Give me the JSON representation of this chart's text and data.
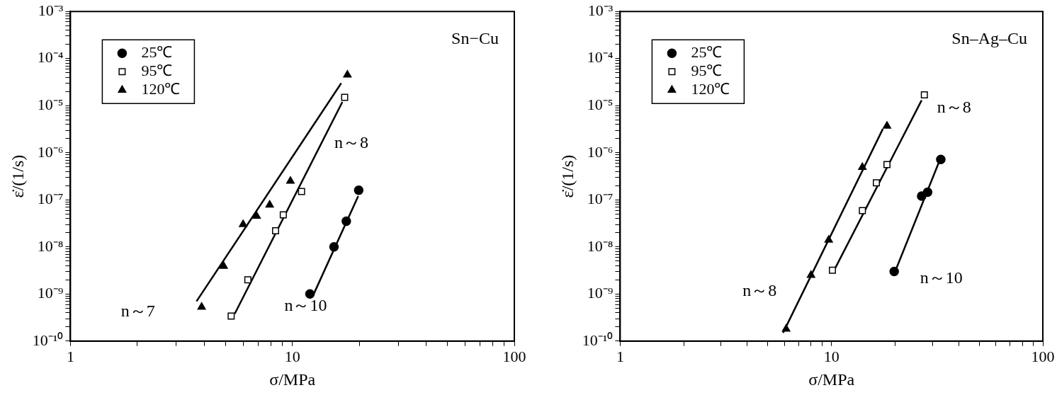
{
  "chart_data": [
    {
      "type": "scatter",
      "xlabel": "σ/MPa",
      "ylabel": "ε̇/(1/s)",
      "log": "xy",
      "grid": false,
      "legend": "top left",
      "xlim": [
        1,
        100
      ],
      "ylim": [
        1e-10,
        0.001
      ],
      "xticks": [
        1,
        {
          "value": 2,
          "label": null
        },
        {
          "value": 3,
          "label": null
        },
        {
          "value": 4,
          "label": null
        },
        {
          "value": 5,
          "label": null
        },
        {
          "value": 6,
          "label": null
        },
        {
          "value": 7,
          "label": null
        },
        {
          "value": 8,
          "label": null
        },
        {
          "value": 9,
          "label": null
        },
        10,
        {
          "value": 20,
          "label": null
        },
        {
          "value": 30,
          "label": null
        },
        {
          "value": 40,
          "label": null
        },
        {
          "value": 50,
          "label": null
        },
        {
          "value": 60,
          "label": null
        },
        {
          "value": 70,
          "label": null
        },
        {
          "value": 80,
          "label": null
        },
        {
          "value": 90,
          "label": null
        },
        100
      ],
      "yticks": [
        {
          "value": 1e-10,
          "label": "10⁻¹⁰"
        },
        {
          "value": 2e-10,
          "label": null
        },
        {
          "value": 3e-10,
          "label": null
        },
        {
          "value": 4e-10,
          "label": null
        },
        {
          "value": 5e-10,
          "label": null
        },
        {
          "value": 6e-10,
          "label": null
        },
        {
          "value": 7e-10,
          "label": null
        },
        {
          "value": 8e-10,
          "label": null
        },
        {
          "value": 9e-10,
          "label": null
        },
        {
          "value": 1e-09,
          "label": "10⁻⁹"
        },
        {
          "value": 2e-09,
          "label": null
        },
        {
          "value": 3e-09,
          "label": null
        },
        {
          "value": 4e-09,
          "label": null
        },
        {
          "value": 5e-09,
          "label": null
        },
        {
          "value": 6e-09,
          "label": null
        },
        {
          "value": 7e-09,
          "label": null
        },
        {
          "value": 8e-09,
          "label": null
        },
        {
          "value": 9e-09,
          "label": null
        },
        {
          "value": 1e-08,
          "label": "10⁻⁸"
        },
        {
          "value": 2e-08,
          "label": null
        },
        {
          "value": 3e-08,
          "label": null
        },
        {
          "value": 4e-08,
          "label": null
        },
        {
          "value": 5e-08,
          "label": null
        },
        {
          "value": 6e-08,
          "label": null
        },
        {
          "value": 7e-08,
          "label": null
        },
        {
          "value": 8e-08,
          "label": null
        },
        {
          "value": 9e-08,
          "label": null
        },
        {
          "value": 1e-07,
          "label": "10⁻⁷"
        },
        {
          "value": 2e-07,
          "label": null
        },
        {
          "value": 3e-07,
          "label": null
        },
        {
          "value": 4e-07,
          "label": null
        },
        {
          "value": 5e-07,
          "label": null
        },
        {
          "value": 6e-07,
          "label": null
        },
        {
          "value": 7e-07,
          "label": null
        },
        {
          "value": 8e-07,
          "label": null
        },
        {
          "value": 9e-07,
          "label": null
        },
        {
          "value": 1e-06,
          "label": "10⁻⁶"
        },
        {
          "value": 2e-06,
          "label": null
        },
        {
          "value": 3e-06,
          "label": null
        },
        {
          "value": 4e-06,
          "label": null
        },
        {
          "value": 5e-06,
          "label": null
        },
        {
          "value": 6e-06,
          "label": null
        },
        {
          "value": 7e-06,
          "label": null
        },
        {
          "value": 8e-06,
          "label": null
        },
        {
          "value": 9e-06,
          "label": null
        },
        {
          "value": 1e-05,
          "label": "10⁻⁵"
        },
        {
          "value": 2e-05,
          "label": null
        },
        {
          "value": 3e-05,
          "label": null
        },
        {
          "value": 4e-05,
          "label": null
        },
        {
          "value": 5e-05,
          "label": null
        },
        {
          "value": 6e-05,
          "label": null
        },
        {
          "value": 7e-05,
          "label": null
        },
        {
          "value": 8e-05,
          "label": null
        },
        {
          "value": 9e-05,
          "label": null
        },
        {
          "value": 0.0001,
          "label": "10⁻⁴"
        },
        {
          "value": 0.0002,
          "label": null
        },
        {
          "value": 0.0003,
          "label": null
        },
        {
          "value": 0.0004,
          "label": null
        },
        {
          "value": 0.0005,
          "label": null
        },
        {
          "value": 0.0006,
          "label": null
        },
        {
          "value": 0.0007,
          "label": null
        },
        {
          "value": 0.0008,
          "label": null
        },
        {
          "value": 0.0009,
          "label": null
        },
        {
          "value": 0.001,
          "label": "10⁻³"
        }
      ],
      "series": [
        {
          "name": "25℃",
          "color": "#000000",
          "marker": "circle",
          "x": [
            12.0,
            15.4,
            17.5,
            19.9
          ],
          "values": [
            1e-09,
            1e-08,
            3.5e-08,
            1.6e-07
          ]
        },
        {
          "name": "95℃",
          "color": "#000000",
          "marker": "square",
          "x": [
            5.3,
            6.3,
            8.4,
            9.1,
            11.0,
            17.2
          ],
          "values": [
            3.4e-10,
            2e-09,
            2.2e-08,
            4.8e-08,
            1.5e-07,
            1.5e-05
          ]
        },
        {
          "name": "120℃",
          "color": "#000000",
          "marker": "triangle",
          "x": [
            3.9,
            4.9,
            6.0,
            6.9,
            7.9,
            9.8,
            17.7
          ],
          "values": [
            5.3e-10,
            3.9e-09,
            3e-08,
            4.5e-08,
            7.8e-08,
            2.5e-07,
            4.5e-05
          ]
        },
        {
          "type": "line",
          "color": "#000000",
          "marker": "none",
          "x": [
            12.4,
            19.8
          ],
          "values": [
            9.3e-10,
            1.2e-07
          ]
        },
        {
          "type": "line",
          "color": "#000000",
          "marker": "none",
          "x": [
            5.5,
            16.8
          ],
          "values": [
            3.8e-10,
            1.2e-05
          ]
        },
        {
          "type": "line",
          "color": "#000000",
          "marker": "none",
          "x": [
            3.7,
            16.6
          ],
          "values": [
            7e-10,
            3e-05
          ]
        }
      ],
      "annotations": [
        "Sn−Cu",
        "n～8",
        "n～7",
        "n～10"
      ]
    },
    {
      "type": "scatter",
      "xlabel": "σ/MPa",
      "ylabel": "ε̇/(1/s)",
      "log": "xy",
      "grid": false,
      "legend": "top left",
      "xlim": [
        1,
        100
      ],
      "ylim": [
        1e-10,
        0.001
      ],
      "xticks": [
        1,
        {
          "value": 2,
          "label": null
        },
        {
          "value": 3,
          "label": null
        },
        {
          "value": 4,
          "label": null
        },
        {
          "value": 5,
          "label": null
        },
        {
          "value": 6,
          "label": null
        },
        {
          "value": 7,
          "label": null
        },
        {
          "value": 8,
          "label": null
        },
        {
          "value": 9,
          "label": null
        },
        10,
        {
          "value": 20,
          "label": null
        },
        {
          "value": 30,
          "label": null
        },
        {
          "value": 40,
          "label": null
        },
        {
          "value": 50,
          "label": null
        },
        {
          "value": 60,
          "label": null
        },
        {
          "value": 70,
          "label": null
        },
        {
          "value": 80,
          "label": null
        },
        {
          "value": 90,
          "label": null
        },
        100
      ],
      "yticks": [
        {
          "value": 1e-10,
          "label": "10⁻¹⁰"
        },
        {
          "value": 2e-10,
          "label": null
        },
        {
          "value": 3e-10,
          "label": null
        },
        {
          "value": 4e-10,
          "label": null
        },
        {
          "value": 5e-10,
          "label": null
        },
        {
          "value": 6e-10,
          "label": null
        },
        {
          "value": 7e-10,
          "label": null
        },
        {
          "value": 8e-10,
          "label": null
        },
        {
          "value": 9e-10,
          "label": null
        },
        {
          "value": 1e-09,
          "label": "10⁻⁹"
        },
        {
          "value": 2e-09,
          "label": null
        },
        {
          "value": 3e-09,
          "label": null
        },
        {
          "value": 4e-09,
          "label": null
        },
        {
          "value": 5e-09,
          "label": null
        },
        {
          "value": 6e-09,
          "label": null
        },
        {
          "value": 7e-09,
          "label": null
        },
        {
          "value": 8e-09,
          "label": null
        },
        {
          "value": 9e-09,
          "label": null
        },
        {
          "value": 1e-08,
          "label": "10⁻⁸"
        },
        {
          "value": 2e-08,
          "label": null
        },
        {
          "value": 3e-08,
          "label": null
        },
        {
          "value": 4e-08,
          "label": null
        },
        {
          "value": 5e-08,
          "label": null
        },
        {
          "value": 6e-08,
          "label": null
        },
        {
          "value": 7e-08,
          "label": null
        },
        {
          "value": 8e-08,
          "label": null
        },
        {
          "value": 9e-08,
          "label": null
        },
        {
          "value": 1e-07,
          "label": "10⁻⁷"
        },
        {
          "value": 2e-07,
          "label": null
        },
        {
          "value": 3e-07,
          "label": null
        },
        {
          "value": 4e-07,
          "label": null
        },
        {
          "value": 5e-07,
          "label": null
        },
        {
          "value": 6e-07,
          "label": null
        },
        {
          "value": 7e-07,
          "label": null
        },
        {
          "value": 8e-07,
          "label": null
        },
        {
          "value": 9e-07,
          "label": null
        },
        {
          "value": 1e-06,
          "label": "10⁻⁶"
        },
        {
          "value": 2e-06,
          "label": null
        },
        {
          "value": 3e-06,
          "label": null
        },
        {
          "value": 4e-06,
          "label": null
        },
        {
          "value": 5e-06,
          "label": null
        },
        {
          "value": 6e-06,
          "label": null
        },
        {
          "value": 7e-06,
          "label": null
        },
        {
          "value": 8e-06,
          "label": null
        },
        {
          "value": 9e-06,
          "label": null
        },
        {
          "value": 1e-05,
          "label": "10⁻⁵"
        },
        {
          "value": 2e-05,
          "label": null
        },
        {
          "value": 3e-05,
          "label": null
        },
        {
          "value": 4e-05,
          "label": null
        },
        {
          "value": 5e-05,
          "label": null
        },
        {
          "value": 6e-05,
          "label": null
        },
        {
          "value": 7e-05,
          "label": null
        },
        {
          "value": 8e-05,
          "label": null
        },
        {
          "value": 9e-05,
          "label": null
        },
        {
          "value": 0.0001,
          "label": "10⁻⁴"
        },
        {
          "value": 0.0002,
          "label": null
        },
        {
          "value": 0.0003,
          "label": null
        },
        {
          "value": 0.0004,
          "label": null
        },
        {
          "value": 0.0005,
          "label": null
        },
        {
          "value": 0.0006,
          "label": null
        },
        {
          "value": 0.0007,
          "label": null
        },
        {
          "value": 0.0008,
          "label": null
        },
        {
          "value": 0.0009,
          "label": null
        },
        {
          "value": 0.001,
          "label": "10⁻³"
        }
      ],
      "series": [
        {
          "name": "25℃",
          "color": "#000000",
          "marker": "circle",
          "x": [
            19.8,
            26.7,
            28.5,
            32.9
          ],
          "values": [
            3e-09,
            1.2e-07,
            1.45e-07,
            7.2e-07
          ]
        },
        {
          "name": "95℃",
          "color": "#000000",
          "marker": "square",
          "x": [
            10.1,
            14.0,
            16.3,
            18.3,
            27.5
          ],
          "values": [
            3.2e-09,
            5.9e-08,
            2.3e-07,
            5.6e-07,
            1.7e-05
          ]
        },
        {
          "name": "120℃",
          "color": "#000000",
          "marker": "triangle",
          "x": [
            6.1,
            8.0,
            9.7,
            14.0,
            18.3
          ],
          "values": [
            1.8e-10,
            2.5e-09,
            1.4e-08,
            4.9e-07,
            3.7e-06
          ]
        },
        {
          "type": "line",
          "color": "#000000",
          "marker": "none",
          "x": [
            20.0,
            32.1
          ],
          "values": [
            3e-09,
            6e-07
          ]
        },
        {
          "type": "line",
          "color": "#000000",
          "marker": "none",
          "x": [
            10.4,
            26.7
          ],
          "values": [
            3.5e-09,
            1.3e-05
          ]
        },
        {
          "type": "line",
          "color": "#000000",
          "marker": "none",
          "x": [
            5.9,
            17.5
          ],
          "values": [
            1.5e-10,
            3.2e-06
          ]
        }
      ],
      "annotations": [
        "Sn–Ag–Cu",
        "n～8",
        "n～8",
        "n～10"
      ]
    }
  ]
}
